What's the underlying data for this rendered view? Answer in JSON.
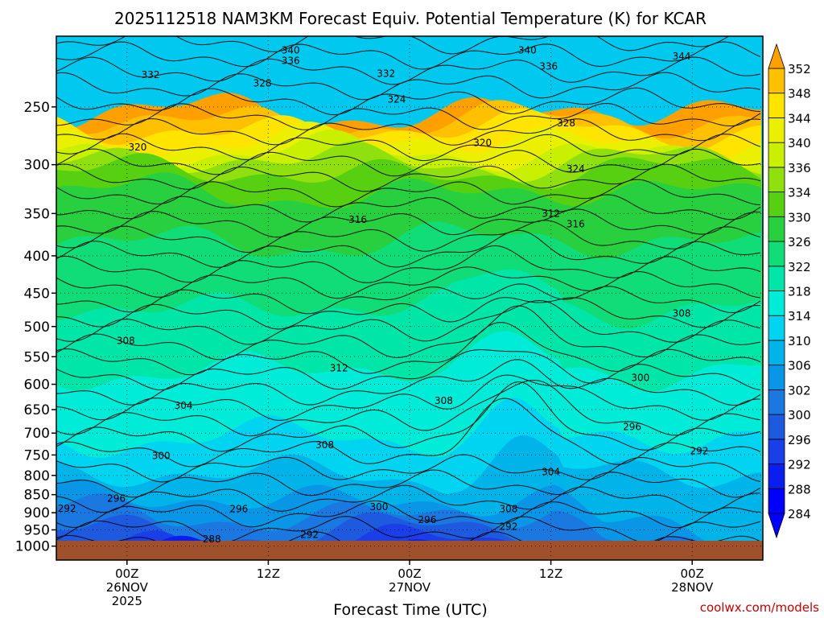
{
  "chart_data": {
    "type": "heatmap",
    "title": "2025112518 NAM3KM Forecast Equiv. Potential Temperature (K) for KCAR",
    "xlabel": "Forecast Time (UTC)",
    "ylabel": "",
    "y_scale": "log-pressure",
    "y_inverted": true,
    "ylim": [
      1000,
      200
    ],
    "y_ticks": [
      250,
      300,
      350,
      400,
      450,
      500,
      550,
      600,
      650,
      700,
      750,
      800,
      850,
      900,
      950,
      1000
    ],
    "x_ticks": [
      {
        "hour": 6,
        "label": [
          "00Z",
          "26NOV",
          "2025"
        ]
      },
      {
        "hour": 18,
        "label": [
          "12Z"
        ]
      },
      {
        "hour": 30,
        "label": [
          "00Z",
          "27NOV"
        ]
      },
      {
        "hour": 42,
        "label": [
          "12Z"
        ]
      },
      {
        "hour": 54,
        "label": [
          "00Z",
          "28NOV"
        ]
      }
    ],
    "xlim": [
      0,
      60
    ],
    "grid": true,
    "colorbar": {
      "placement": "right",
      "levels": [
        284,
        288,
        292,
        296,
        300,
        302,
        306,
        310,
        314,
        318,
        322,
        326,
        330,
        334,
        336,
        340,
        344,
        348,
        352
      ],
      "colors": [
        "#0000ff",
        "#0a1ef0",
        "#1a3fe8",
        "#1e5ae0",
        "#1a78e0",
        "#0a96e6",
        "#00b4ea",
        "#00d4f0",
        "#00ecd8",
        "#00e6a8",
        "#10dc78",
        "#28d040",
        "#56d010",
        "#90e010",
        "#c8f000",
        "#eaf000",
        "#ffe400",
        "#ffc000",
        "#ffa000"
      ]
    },
    "contour_labels": [
      {
        "hour": 19.9,
        "p": 209,
        "label": "340"
      },
      {
        "hour": 19.9,
        "p": 216,
        "label": "336"
      },
      {
        "hour": 8.0,
        "p": 226,
        "label": "332"
      },
      {
        "hour": 17.5,
        "p": 232,
        "label": "328"
      },
      {
        "hour": 40.0,
        "p": 209,
        "label": "340"
      },
      {
        "hour": 41.8,
        "p": 220,
        "label": "336"
      },
      {
        "hour": 53.1,
        "p": 213,
        "label": "344"
      },
      {
        "hour": 28.0,
        "p": 225,
        "label": "332"
      },
      {
        "hour": 28.9,
        "p": 244,
        "label": "324"
      },
      {
        "hour": 43.3,
        "p": 263,
        "label": "328"
      },
      {
        "hour": 6.9,
        "p": 284,
        "label": "320"
      },
      {
        "hour": 36.2,
        "p": 280,
        "label": "320"
      },
      {
        "hour": 44.1,
        "p": 304,
        "label": "324"
      },
      {
        "hour": 25.6,
        "p": 357,
        "label": "316"
      },
      {
        "hour": 42.0,
        "p": 350,
        "label": "312"
      },
      {
        "hour": 44.1,
        "p": 362,
        "label": "316"
      },
      {
        "hour": 53.1,
        "p": 480,
        "label": "308"
      },
      {
        "hour": 5.9,
        "p": 523,
        "label": "308"
      },
      {
        "hour": 24.0,
        "p": 570,
        "label": "312"
      },
      {
        "hour": 49.6,
        "p": 588,
        "label": "300"
      },
      {
        "hour": 10.8,
        "p": 642,
        "label": "304"
      },
      {
        "hour": 32.9,
        "p": 632,
        "label": "308"
      },
      {
        "hour": 48.9,
        "p": 686,
        "label": "296"
      },
      {
        "hour": 22.8,
        "p": 727,
        "label": "308"
      },
      {
        "hour": 8.9,
        "p": 752,
        "label": "300"
      },
      {
        "hour": 54.6,
        "p": 741,
        "label": "292"
      },
      {
        "hour": 42.0,
        "p": 791,
        "label": "304"
      },
      {
        "hour": 5.1,
        "p": 861,
        "label": "296"
      },
      {
        "hour": 0.9,
        "p": 888,
        "label": "292"
      },
      {
        "hour": 15.5,
        "p": 889,
        "label": "296"
      },
      {
        "hour": 27.4,
        "p": 884,
        "label": "300"
      },
      {
        "hour": 38.4,
        "p": 889,
        "label": "308"
      },
      {
        "hour": 31.5,
        "p": 920,
        "label": "296"
      },
      {
        "hour": 38.4,
        "p": 941,
        "label": "292"
      },
      {
        "hour": 21.5,
        "p": 965,
        "label": "292"
      },
      {
        "hour": 13.2,
        "p": 978,
        "label": "288"
      }
    ]
  },
  "credit": "coolwx.com/models"
}
